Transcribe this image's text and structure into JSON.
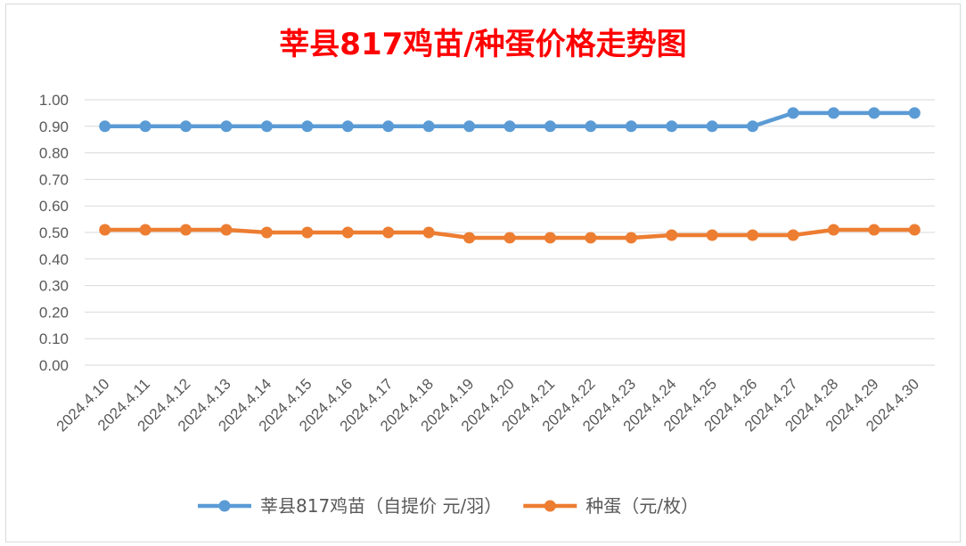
{
  "chart_data": {
    "type": "line",
    "title": "莘县817鸡苗/种蛋价格走势图",
    "xlabel": "",
    "ylabel": "",
    "categories": [
      "2024.4.10",
      "2024.4.11",
      "2024.4.12",
      "2024.4.13",
      "2024.4.14",
      "2024.4.15",
      "2024.4.16",
      "2024.4.17",
      "2024.4.18",
      "2024.4.19",
      "2024.4.20",
      "2024.4.21",
      "2024.4.22",
      "2024.4.23",
      "2024.4.24",
      "2024.4.25",
      "2024.4.26",
      "2024.4.27",
      "2024.4.28",
      "2024.4.29",
      "2024.4.30"
    ],
    "series": [
      {
        "name": "莘县817鸡苗（自提价 元/羽）",
        "color": "#5B9BD5",
        "values": [
          0.9,
          0.9,
          0.9,
          0.9,
          0.9,
          0.9,
          0.9,
          0.9,
          0.9,
          0.9,
          0.9,
          0.9,
          0.9,
          0.9,
          0.9,
          0.9,
          0.9,
          0.95,
          0.95,
          0.95,
          0.95
        ]
      },
      {
        "name": "种蛋（元/枚）",
        "color": "#ED7D31",
        "values": [
          0.51,
          0.51,
          0.51,
          0.51,
          0.5,
          0.5,
          0.5,
          0.5,
          0.5,
          0.48,
          0.48,
          0.48,
          0.48,
          0.48,
          0.49,
          0.49,
          0.49,
          0.49,
          0.51,
          0.51,
          0.51
        ]
      }
    ],
    "ylim": [
      0,
      1.0
    ],
    "yticks": [
      "0.00",
      "0.10",
      "0.20",
      "0.30",
      "0.40",
      "0.50",
      "0.60",
      "0.70",
      "0.80",
      "0.90",
      "1.00"
    ],
    "grid": true,
    "legend_position": "bottom",
    "title_color": "#FF0000"
  }
}
